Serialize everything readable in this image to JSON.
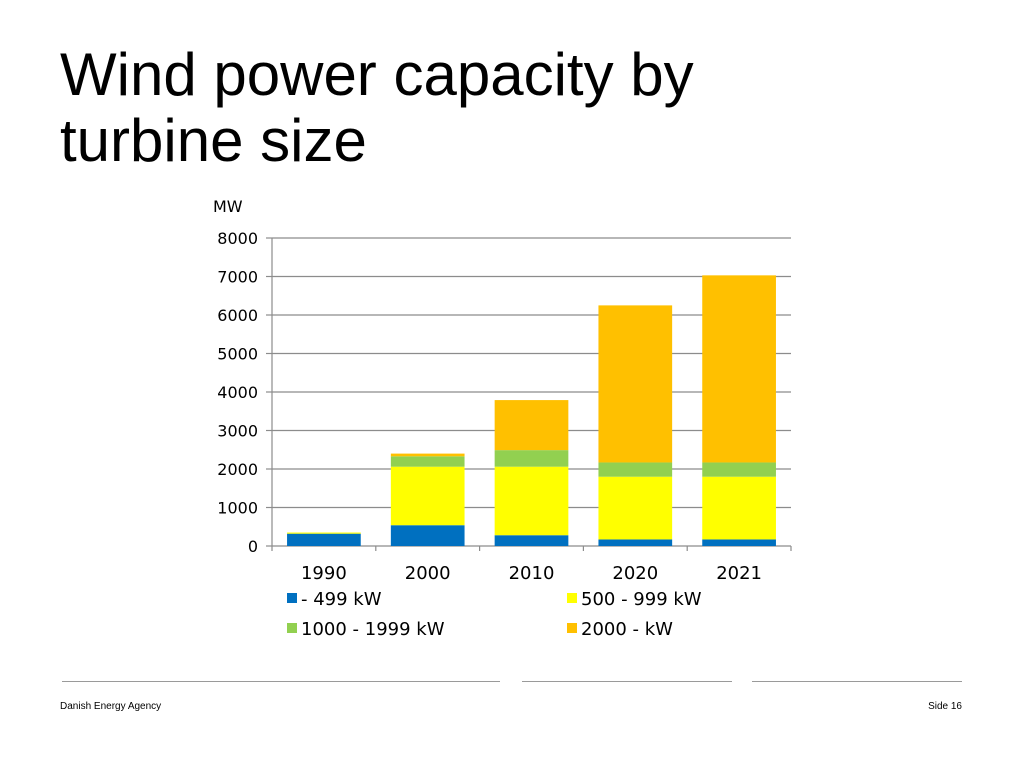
{
  "slide": {
    "title_line1": "Wind power capacity by",
    "title_line2": "turbine size"
  },
  "footer": {
    "left": "Danish Energy Agency",
    "right": "Side 16"
  },
  "chart_data": {
    "type": "bar",
    "stacked": true,
    "title": "",
    "xlabel": "",
    "ylabel": "MW",
    "ylim": [
      0,
      8000
    ],
    "yticks": [
      0,
      1000,
      2000,
      3000,
      4000,
      5000,
      6000,
      7000,
      8000
    ],
    "grid": true,
    "legend_position": "bottom",
    "categories": [
      "1990",
      "2000",
      "2010",
      "2020",
      "2021"
    ],
    "series": [
      {
        "name": "- 499 kW",
        "color": "#0070c0",
        "values": [
          320,
          540,
          280,
          170,
          170
        ]
      },
      {
        "name": "500 - 999 kW",
        "color": "#ffff00",
        "values": [
          30,
          1520,
          1780,
          1630,
          1630
        ]
      },
      {
        "name": "1000 - 1999 kW",
        "color": "#92d050",
        "values": [
          0,
          270,
          430,
          370,
          370
        ]
      },
      {
        "name": "2000 - kW",
        "color": "#ffc000",
        "values": [
          0,
          70,
          1300,
          4080,
          4860
        ]
      }
    ]
  }
}
